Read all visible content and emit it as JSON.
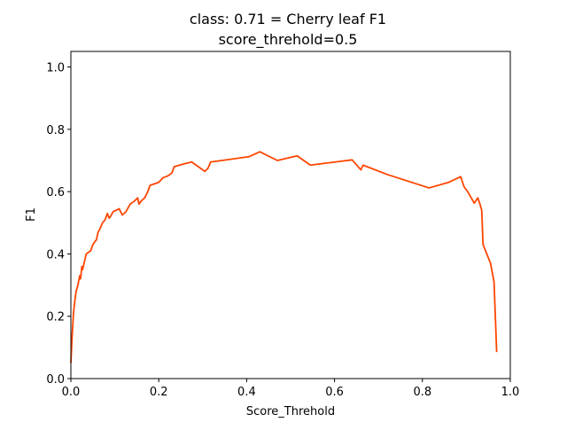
{
  "chart_data": {
    "type": "line",
    "title": "class: 0.71 = Cherry leaf F1",
    "subtitle": "score_threhold=0.5",
    "xlabel": "Score_Threhold",
    "ylabel": "F1",
    "xlim": [
      0.0,
      1.0
    ],
    "ylim": [
      0.0,
      1.05
    ],
    "xticks": [
      0.0,
      0.2,
      0.4,
      0.6,
      0.8,
      1.0
    ],
    "xtick_labels": [
      "0.0",
      "0.2",
      "0.4",
      "0.6",
      "0.8",
      "1.0"
    ],
    "yticks": [
      0.0,
      0.2,
      0.4,
      0.6,
      0.8,
      1.0
    ],
    "ytick_labels": [
      "0.0",
      "0.2",
      "0.4",
      "0.6",
      "0.8",
      "1.0"
    ],
    "grid": false,
    "line_color": "#ff4500",
    "series": [
      {
        "x": [
          0.0,
          0.003,
          0.006,
          0.009,
          0.012,
          0.016,
          0.02,
          0.022,
          0.025,
          0.027,
          0.03,
          0.035,
          0.04,
          0.045,
          0.05,
          0.055,
          0.058,
          0.062,
          0.066,
          0.072,
          0.078,
          0.083,
          0.087,
          0.09,
          0.096,
          0.103,
          0.11,
          0.117,
          0.125,
          0.135,
          0.145,
          0.152,
          0.155,
          0.16,
          0.168,
          0.175,
          0.18,
          0.19,
          0.2,
          0.21,
          0.22,
          0.23,
          0.235,
          0.26,
          0.275,
          0.29,
          0.305,
          0.312,
          0.318,
          0.405,
          0.43,
          0.47,
          0.515,
          0.545,
          0.64,
          0.66,
          0.665,
          0.72,
          0.815,
          0.86,
          0.887,
          0.895,
          0.903,
          0.918,
          0.926,
          0.931,
          0.935,
          0.938,
          0.955,
          0.963,
          0.969
        ],
        "y": [
          0.05,
          0.14,
          0.21,
          0.25,
          0.28,
          0.3,
          0.33,
          0.32,
          0.36,
          0.35,
          0.37,
          0.4,
          0.405,
          0.41,
          0.43,
          0.44,
          0.445,
          0.47,
          0.48,
          0.5,
          0.51,
          0.53,
          0.515,
          0.52,
          0.535,
          0.54,
          0.545,
          0.525,
          0.535,
          0.56,
          0.57,
          0.58,
          0.56,
          0.57,
          0.58,
          0.6,
          0.62,
          0.625,
          0.63,
          0.645,
          0.65,
          0.66,
          0.68,
          0.69,
          0.695,
          0.68,
          0.665,
          0.675,
          0.695,
          0.712,
          0.728,
          0.7,
          0.715,
          0.685,
          0.702,
          0.67,
          0.685,
          0.655,
          0.612,
          0.63,
          0.648,
          0.615,
          0.6,
          0.563,
          0.58,
          0.56,
          0.54,
          0.43,
          0.37,
          0.31,
          0.085
        ]
      }
    ]
  }
}
